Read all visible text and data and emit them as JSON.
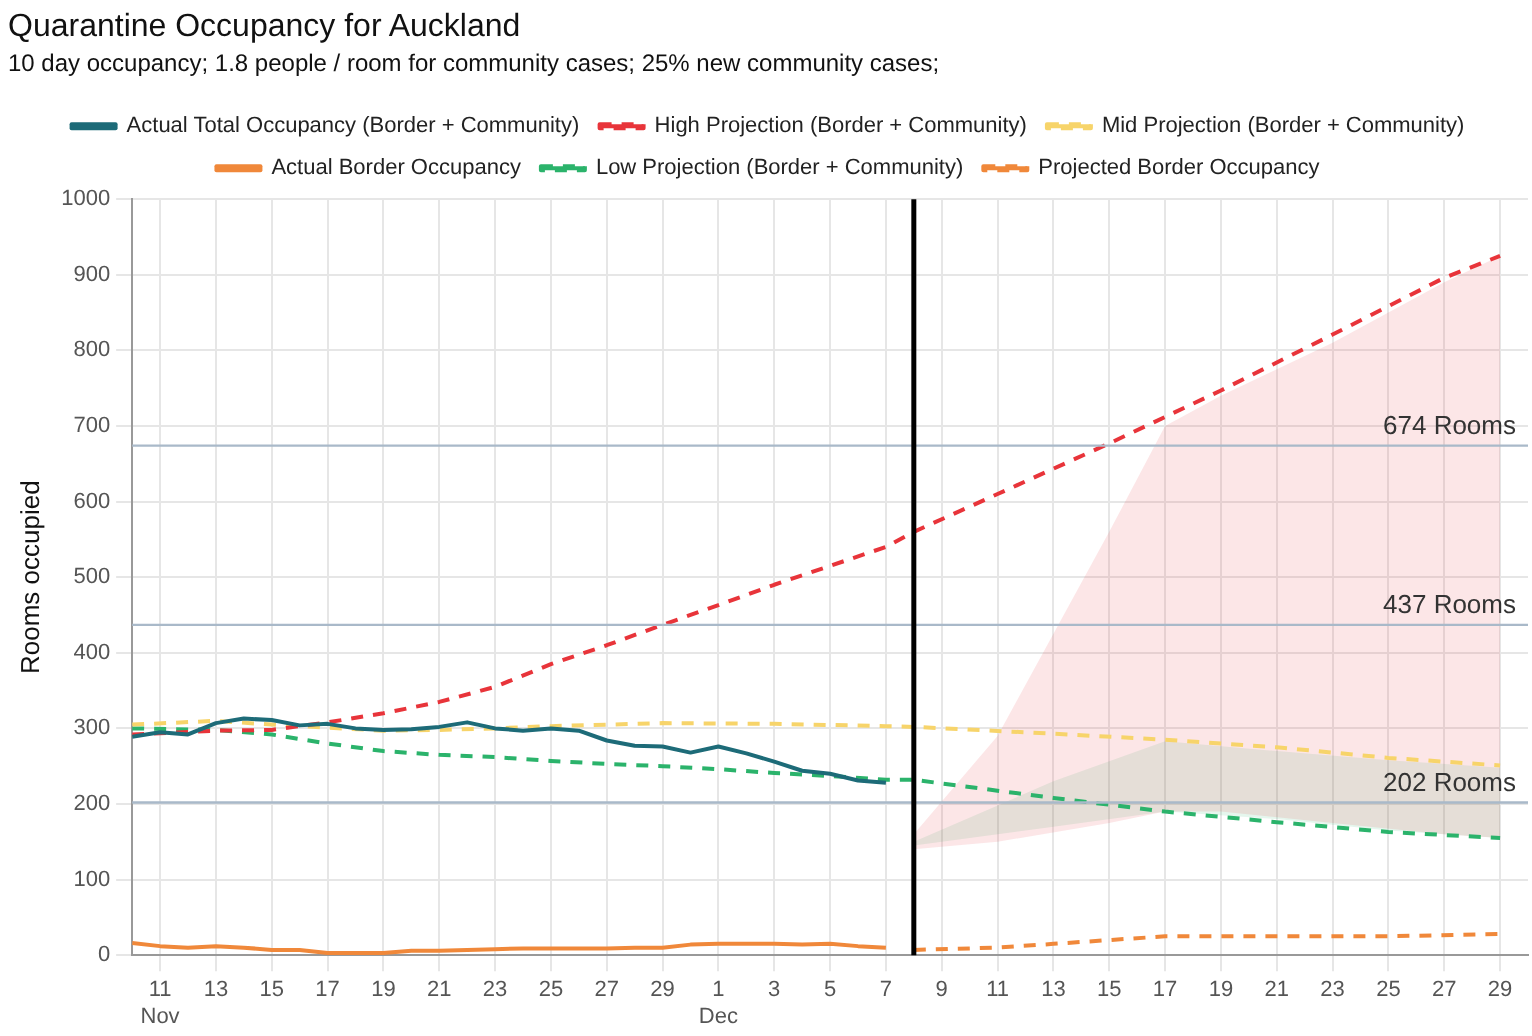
{
  "chart_data": {
    "type": "line",
    "title": "Quarantine Occupancy for Auckland",
    "subtitle": "10 day occupancy; 1.8 people / room for community cases; 25% new community cases;",
    "ylabel": "Rooms occupied",
    "xlim": [
      "--11-10",
      "--12-30"
    ],
    "xticks": [
      {
        "value": "--11-11",
        "label": "11\nNov"
      },
      {
        "value": "--11-13",
        "label": "13"
      },
      {
        "value": "--11-15",
        "label": "15"
      },
      {
        "value": "--11-17",
        "label": "17"
      },
      {
        "value": "--11-19",
        "label": "19"
      },
      {
        "value": "--11-21",
        "label": "21"
      },
      {
        "value": "--11-23",
        "label": "23"
      },
      {
        "value": "--11-25",
        "label": "25"
      },
      {
        "value": "--11-27",
        "label": "27"
      },
      {
        "value": "--11-29",
        "label": "29"
      },
      {
        "value": "--12-01",
        "label": "1\nDec"
      },
      {
        "value": "--12-03",
        "label": "3"
      },
      {
        "value": "--12-05",
        "label": "5"
      },
      {
        "value": "--12-07",
        "label": "7"
      },
      {
        "value": "--12-09",
        "label": "9"
      },
      {
        "value": "--12-11",
        "label": "11"
      },
      {
        "value": "--12-13",
        "label": "13"
      },
      {
        "value": "--12-15",
        "label": "15"
      },
      {
        "value": "--12-17",
        "label": "17"
      },
      {
        "value": "--12-19",
        "label": "19"
      },
      {
        "value": "--12-21",
        "label": "21"
      },
      {
        "value": "--12-23",
        "label": "23"
      },
      {
        "value": "--12-25",
        "label": "25"
      },
      {
        "value": "--12-27",
        "label": "27"
      },
      {
        "value": "--12-29",
        "label": "29"
      }
    ],
    "ylim": [
      0,
      1000
    ],
    "yticks": [
      0,
      100,
      200,
      300,
      400,
      500,
      600,
      700,
      800,
      900,
      1000
    ],
    "grid": true,
    "legend": "top",
    "marker": "none",
    "series": [
      {
        "name": "Actual Total Occupancy (Border + Community)",
        "color": "#1d6b78",
        "line_style": "solid",
        "x": [
          "--11-10",
          "--11-11",
          "--11-12",
          "--11-13",
          "--11-14",
          "--11-15",
          "--11-16",
          "--11-17",
          "--11-18",
          "--11-19",
          "--11-20",
          "--11-21",
          "--11-22",
          "--11-23",
          "--11-24",
          "--11-25",
          "--11-26",
          "--11-27",
          "--11-28",
          "--11-29",
          "--11-30",
          "--12-01",
          "--12-02",
          "--12-03",
          "--12-04",
          "--12-05",
          "--12-06",
          "--12-07"
        ],
        "values": [
          289,
          295,
          292,
          307,
          313,
          311,
          304,
          306,
          300,
          298,
          299,
          302,
          308,
          300,
          297,
          300,
          297,
          284,
          277,
          276,
          268,
          276,
          267,
          256,
          244,
          240,
          231,
          228
        ]
      },
      {
        "name": "High Projection (Border + Community)",
        "color": "#e8343a",
        "line_style": "dashed",
        "x": [
          "--11-10",
          "--11-13",
          "--11-15",
          "--11-17",
          "--11-19",
          "--11-21",
          "--11-23",
          "--11-25",
          "--11-27",
          "--11-29",
          "--12-01",
          "--12-03",
          "--12-05",
          "--12-07",
          "--12-08",
          "--12-11",
          "--12-15",
          "--12-17",
          "--12-19",
          "--12-23",
          "--12-27",
          "--12-29"
        ],
        "values": [
          292,
          297,
          298,
          308,
          320,
          335,
          355,
          385,
          410,
          437,
          463,
          490,
          515,
          540,
          560,
          610,
          677,
          712,
          747,
          821,
          896,
          925
        ],
        "lower": [
          null,
          null,
          null,
          null,
          null,
          null,
          null,
          null,
          null,
          null,
          null,
          null,
          null,
          null,
          140,
          150,
          175,
          190,
          190,
          175,
          160,
          155
        ],
        "upper": [
          null,
          null,
          null,
          null,
          null,
          null,
          null,
          null,
          null,
          null,
          null,
          null,
          null,
          null,
          160,
          290,
          560,
          700,
          740,
          810,
          890,
          925
        ]
      },
      {
        "name": "Mid Projection (Border + Community)",
        "color": "#f7d46a",
        "line_style": "dashed",
        "x": [
          "--11-10",
          "--11-13",
          "--11-15",
          "--11-19",
          "--11-21",
          "--11-23",
          "--11-25",
          "--11-29",
          "--12-03",
          "--12-07",
          "--12-08",
          "--12-13",
          "--12-17",
          "--12-21",
          "--12-25",
          "--12-29"
        ],
        "values": [
          305,
          310,
          305,
          297,
          298,
          300,
          303,
          307,
          306,
          303,
          302,
          293,
          285,
          275,
          261,
          251
        ]
      },
      {
        "name": "Actual Border Occupancy",
        "color": "#f0883a",
        "line_style": "solid",
        "x": [
          "--11-10",
          "--11-11",
          "--11-12",
          "--11-13",
          "--11-14",
          "--11-15",
          "--11-16",
          "--11-17",
          "--11-18",
          "--11-19",
          "--11-20",
          "--11-21",
          "--11-22",
          "--11-23",
          "--11-24",
          "--11-25",
          "--11-26",
          "--11-27",
          "--11-28",
          "--11-29",
          "--11-30",
          "--12-01",
          "--12-02",
          "--12-03",
          "--12-04",
          "--12-05",
          "--12-06",
          "--12-07"
        ],
        "values": [
          16,
          12,
          10,
          12,
          10,
          7,
          7,
          3,
          3,
          3,
          6,
          6,
          7,
          8,
          9,
          9,
          9,
          9,
          10,
          10,
          14,
          15,
          15,
          15,
          14,
          15,
          12,
          10
        ]
      },
      {
        "name": "Low Projection (Border + Community)",
        "color": "#2bb36b",
        "line_style": "dashed",
        "x": [
          "--11-10",
          "--11-13",
          "--11-15",
          "--11-17",
          "--11-19",
          "--11-21",
          "--11-23",
          "--11-25",
          "--11-27",
          "--11-29",
          "--12-01",
          "--12-03",
          "--12-05",
          "--12-07",
          "--12-08",
          "--12-13",
          "--12-17",
          "--12-21",
          "--12-25",
          "--12-29"
        ],
        "values": [
          300,
          298,
          292,
          280,
          270,
          265,
          262,
          257,
          253,
          250,
          246,
          241,
          237,
          232,
          232,
          208,
          190,
          176,
          163,
          155
        ],
        "lower": [
          null,
          null,
          null,
          null,
          null,
          null,
          null,
          null,
          null,
          null,
          null,
          null,
          null,
          null,
          145,
          170,
          190,
          180,
          165,
          155
        ],
        "upper": [
          null,
          null,
          null,
          null,
          null,
          null,
          null,
          null,
          null,
          null,
          null,
          null,
          null,
          null,
          150,
          230,
          283,
          270,
          258,
          248
        ]
      },
      {
        "name": "Projected Border Occupancy",
        "color": "#f0883a",
        "line_style": "dashed",
        "x": [
          "--12-08",
          "--12-11",
          "--12-13",
          "--12-17",
          "--12-21",
          "--12-25",
          "--12-29"
        ],
        "values": [
          7,
          10,
          15,
          25,
          25,
          25,
          28
        ]
      }
    ],
    "ref_lines": [
      {
        "axis": "y",
        "value": 674,
        "label": "674 Rooms",
        "color": "#a9b9c9"
      },
      {
        "axis": "y",
        "value": 437,
        "label": "437 Rooms",
        "color": "#a9b9c9"
      },
      {
        "axis": "y",
        "value": 202,
        "label": "202 Rooms",
        "color": "#a9b9c9"
      },
      {
        "axis": "x",
        "value": "--12-08",
        "color": "#000000"
      }
    ]
  }
}
